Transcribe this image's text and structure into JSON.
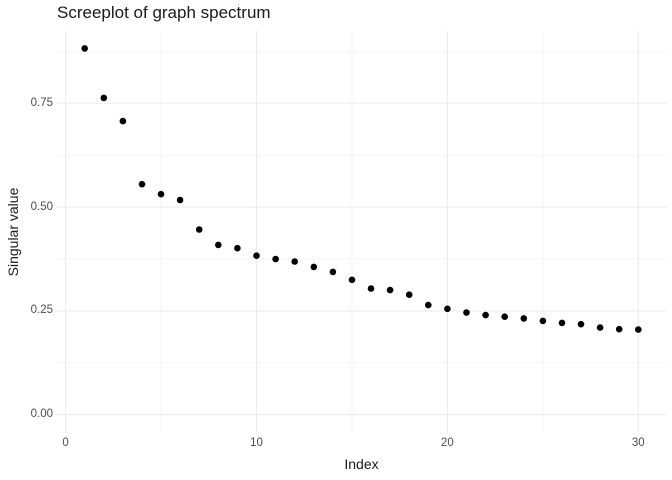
{
  "chart_data": {
    "type": "scatter",
    "title": "Screeplot of graph spectrum",
    "xlabel": "Index",
    "ylabel": "Singular value",
    "x": [
      1,
      2,
      3,
      4,
      5,
      6,
      7,
      8,
      9,
      10,
      11,
      12,
      13,
      14,
      15,
      16,
      17,
      18,
      19,
      20,
      21,
      22,
      23,
      24,
      25,
      26,
      27,
      28,
      29,
      30
    ],
    "y": [
      0.882,
      0.763,
      0.707,
      0.555,
      0.531,
      0.517,
      0.446,
      0.409,
      0.401,
      0.383,
      0.375,
      0.369,
      0.356,
      0.344,
      0.325,
      0.304,
      0.3,
      0.289,
      0.264,
      0.255,
      0.246,
      0.24,
      0.236,
      0.232,
      0.226,
      0.221,
      0.218,
      0.21,
      0.206,
      0.205
    ],
    "xlim": [
      -0.45,
      31.45
    ],
    "ylim": [
      -0.044,
      0.924
    ],
    "x_major_ticks": [
      0,
      10,
      20,
      30
    ],
    "x_tick_labels": [
      "0",
      "10",
      "20",
      "30"
    ],
    "x_minor_ticks": [
      5,
      15,
      25
    ],
    "y_major_ticks": [
      0,
      0.25,
      0.5,
      0.75
    ],
    "y_tick_labels": [
      "0.00",
      "0.25",
      "0.50",
      "0.75"
    ],
    "y_minor_ticks": [
      0.125,
      0.375,
      0.625,
      0.875
    ],
    "grid": "on",
    "legend": "none",
    "point_radius": 3.3,
    "colors": {
      "point": "#000000",
      "grid_major": "#ebebeb",
      "grid_minor": "#f3f3f3",
      "tick_text": "#4d4d4d",
      "title_text": "#1a1a1a",
      "background": "#ffffff"
    }
  }
}
